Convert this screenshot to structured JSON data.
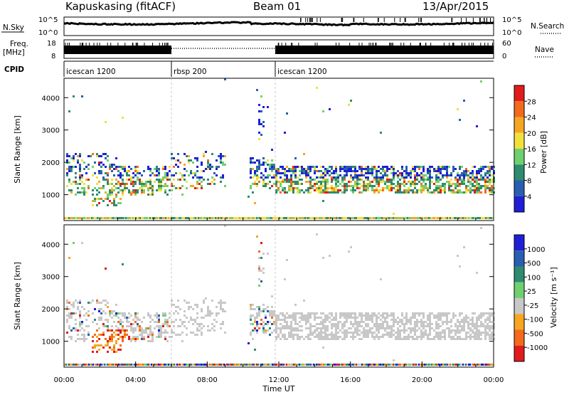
{
  "header": {
    "station": "Kapuskasing (fitACF)",
    "beam": "Beam 01",
    "date": "13/Apr/2015"
  },
  "top_panel_1": {
    "left_label": "N.Sky",
    "right_label": "N.Search",
    "left_ticks": [
      "10^5",
      "10^0"
    ],
    "right_ticks": [
      "10^5",
      "10^0"
    ]
  },
  "top_panel_2": {
    "left_label_1": "Freq.",
    "left_label_2": "[MHz]",
    "right_label": "Nave",
    "left_ticks": [
      "18",
      "8"
    ],
    "right_ticks": [
      "60",
      "0"
    ]
  },
  "cpid": {
    "label": "CPID",
    "segments": [
      {
        "name": "icescan 1200",
        "start_h": 0,
        "end_h": 6
      },
      {
        "name": "rbsp 200",
        "start_h": 6,
        "end_h": 11.8
      },
      {
        "name": "icescan 1200",
        "start_h": 11.8,
        "end_h": 24
      }
    ]
  },
  "chart_data": [
    {
      "type": "heatmap",
      "parameter": "Power",
      "ylabel": "Slant Range [km]",
      "xlim": [
        0,
        24
      ],
      "ylim": [
        200,
        4600
      ],
      "yticks": [
        "1000",
        "2000",
        "3000",
        "4000"
      ],
      "colorbar_label": "Power [dB]",
      "colorbar_ticks": [
        "4",
        "8",
        "12",
        "16",
        "20",
        "24",
        "28"
      ],
      "colorbar_range": [
        0,
        32
      ],
      "colors": [
        "#1f1fd6",
        "#2a5fb0",
        "#2e8b6e",
        "#6fd06f",
        "#f2e13c",
        "#f6a623",
        "#f36a1d",
        "#e11b1b"
      ]
    },
    {
      "type": "heatmap",
      "parameter": "Velocity",
      "ylabel": "Slant Range [km]",
      "xlabel": "Time UT",
      "xlim": [
        0,
        24
      ],
      "ylim": [
        200,
        4600
      ],
      "yticks": [
        "1000",
        "2000",
        "3000",
        "4000"
      ],
      "xticks": [
        "00:00",
        "04:00",
        "08:00",
        "12:00",
        "16:00",
        "20:00",
        "00:00"
      ],
      "colorbar_label": "Velocity [m s⁻¹]",
      "colorbar_ticks": [
        "1000",
        "500",
        "100",
        "25",
        "-25",
        "-100",
        "-500",
        "-1000"
      ],
      "colors": [
        "#1f1fd6",
        "#2a5fb0",
        "#2e8b6e",
        "#6fd06f",
        "#c8c8c8",
        "#f6a623",
        "#f36a1d",
        "#e11b1b"
      ]
    }
  ]
}
